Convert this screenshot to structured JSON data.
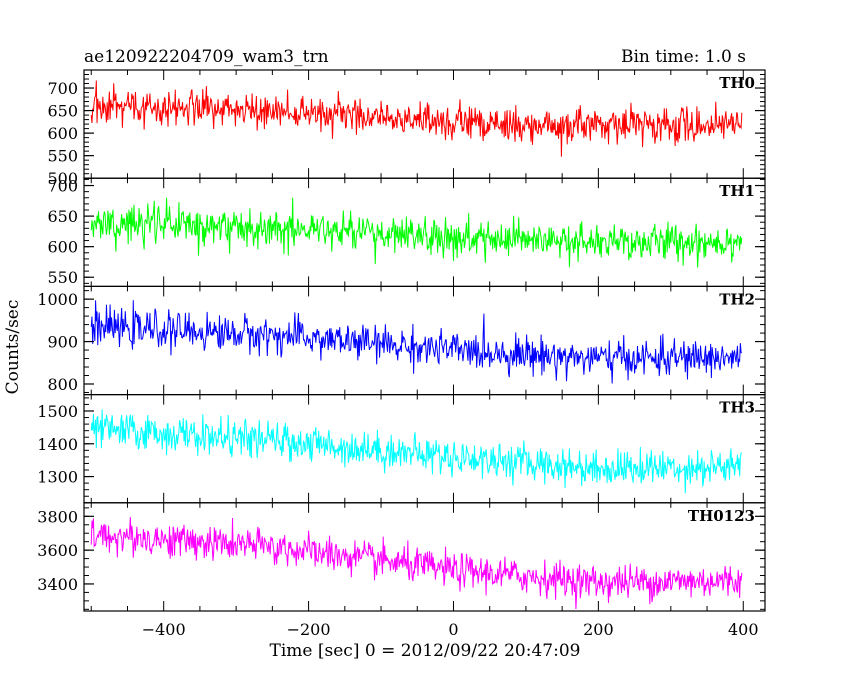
{
  "header": {
    "title": "ae120922204709_wam3_trn",
    "bin_time": "Bin time: 1.0 s"
  },
  "axes": {
    "ylabel": "Counts/sec",
    "xlabel": "Time [sec] 0 = 2012/09/22 20:47:09"
  },
  "chart_data": {
    "type": "line",
    "title": "ae120922204709_wam3_trn",
    "xlabel": "Time [sec] 0 = 2012/09/22 20:47:09",
    "ylabel": "Counts/sec",
    "xlim": [
      -510,
      430
    ],
    "x_start": -500,
    "x_end": 398,
    "bin_seconds": 1.0,
    "x_ticks": [
      -400,
      -200,
      0,
      200,
      400
    ],
    "x_minor_step": 50,
    "grid": false,
    "legend": "none",
    "panels": [
      {
        "name": "TH0",
        "color": "#ff0000",
        "ylim": [
          500,
          740
        ],
        "yticks": [
          500,
          550,
          600,
          650,
          700
        ],
        "minor_step": 10,
        "trend": [
          [
            -500,
            662
          ],
          [
            -250,
            650
          ],
          [
            0,
            625
          ],
          [
            200,
            615
          ],
          [
            398,
            620
          ]
        ],
        "scatter": 32
      },
      {
        "name": "TH1",
        "color": "#00ff00",
        "ylim": [
          535,
          712
        ],
        "yticks": [
          550,
          600,
          650,
          700
        ],
        "minor_step": 10,
        "trend": [
          [
            -500,
            640
          ],
          [
            -250,
            632
          ],
          [
            0,
            612
          ],
          [
            200,
            605
          ],
          [
            398,
            610
          ]
        ],
        "scatter": 26
      },
      {
        "name": "TH2",
        "color": "#0000ff",
        "ylim": [
          775,
          1030
        ],
        "yticks": [
          800,
          900,
          1000
        ],
        "minor_step": 20,
        "trend": [
          [
            -500,
            935
          ],
          [
            -250,
            915
          ],
          [
            0,
            880
          ],
          [
            200,
            860
          ],
          [
            398,
            862
          ]
        ],
        "scatter": 35
      },
      {
        "name": "TH3",
        "color": "#00ffff",
        "ylim": [
          1220,
          1550
        ],
        "yticks": [
          1300,
          1400,
          1500
        ],
        "minor_step": 20,
        "trend": [
          [
            -500,
            1445
          ],
          [
            -250,
            1410
          ],
          [
            0,
            1360
          ],
          [
            200,
            1325
          ],
          [
            398,
            1330
          ]
        ],
        "scatter": 45
      },
      {
        "name": "TH0123",
        "color": "#ff00ff",
        "ylim": [
          3240,
          3880
        ],
        "yticks": [
          3400,
          3600,
          3800
        ],
        "minor_step": 50,
        "trend": [
          [
            -500,
            3690
          ],
          [
            -250,
            3620
          ],
          [
            0,
            3480
          ],
          [
            200,
            3410
          ],
          [
            398,
            3420
          ]
        ],
        "scatter": 85
      }
    ]
  }
}
